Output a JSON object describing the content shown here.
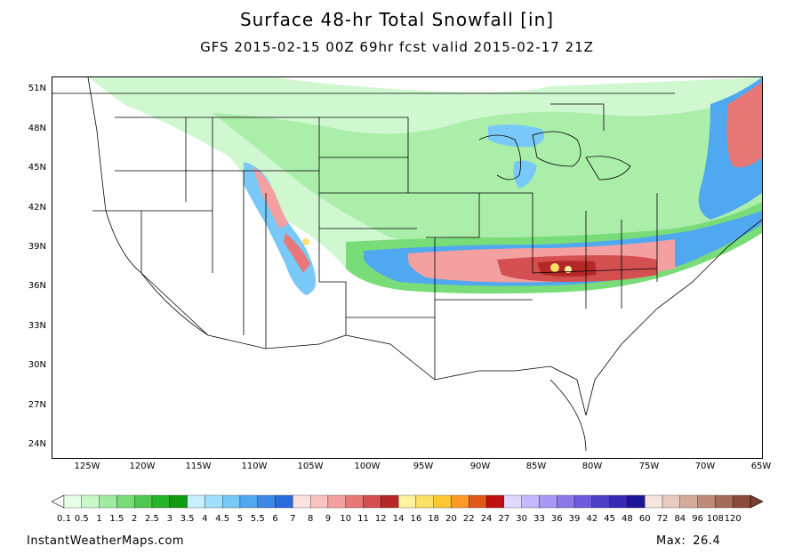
{
  "header": {
    "title": "Surface 48-hr Total Snowfall [in]",
    "subtitle": "GFS 2015-02-15 00Z 69hr fcst valid 2015-02-17 21Z"
  },
  "map": {
    "lat_labels": [
      "51N",
      "48N",
      "45N",
      "42N",
      "39N",
      "36N",
      "33N",
      "30N",
      "27N",
      "24N"
    ],
    "lon_labels": [
      "125W",
      "120W",
      "115W",
      "110W",
      "105W",
      "100W",
      "95W",
      "90W",
      "85W",
      "80W",
      "75W",
      "70W",
      "65W"
    ]
  },
  "legend": {
    "labels": [
      "0.1",
      "0.5",
      "1",
      "1.5",
      "2",
      "2.5",
      "3",
      "3.5",
      "4",
      "4.5",
      "5",
      "5.5",
      "6",
      "7",
      "8",
      "9",
      "10",
      "11",
      "12",
      "14",
      "16",
      "18",
      "20",
      "22",
      "24",
      "27",
      "30",
      "33",
      "36",
      "39",
      "42",
      "45",
      "48",
      "60",
      "72",
      "84",
      "96",
      "108",
      "120"
    ],
    "colors": [
      "#e6ffe6",
      "#c8f7c8",
      "#a0eba0",
      "#78dc78",
      "#50c850",
      "#28b428",
      "#109b10",
      "#c8f0ff",
      "#a0e0ff",
      "#78c8f8",
      "#50a8f0",
      "#3c88e6",
      "#2a6adc",
      "#fde2e2",
      "#fbc4c4",
      "#f4a0a0",
      "#e87878",
      "#d45050",
      "#b42828",
      "#fff3a0",
      "#ffe066",
      "#ffc832",
      "#ff9a28",
      "#e05a1e",
      "#c01010",
      "#e2d8ff",
      "#c8b8ff",
      "#aa98f4",
      "#8c78e8",
      "#6e5adc",
      "#5040c8",
      "#3828b4",
      "#1e1496",
      "#f5e6e0",
      "#e8cac0",
      "#d4aa9a",
      "#bf8a78",
      "#a66a58",
      "#8c4a3a"
    ]
  },
  "footer": {
    "source": "InstantWeatherMaps.com",
    "max_label": "Max:",
    "max_value": "26.4"
  }
}
